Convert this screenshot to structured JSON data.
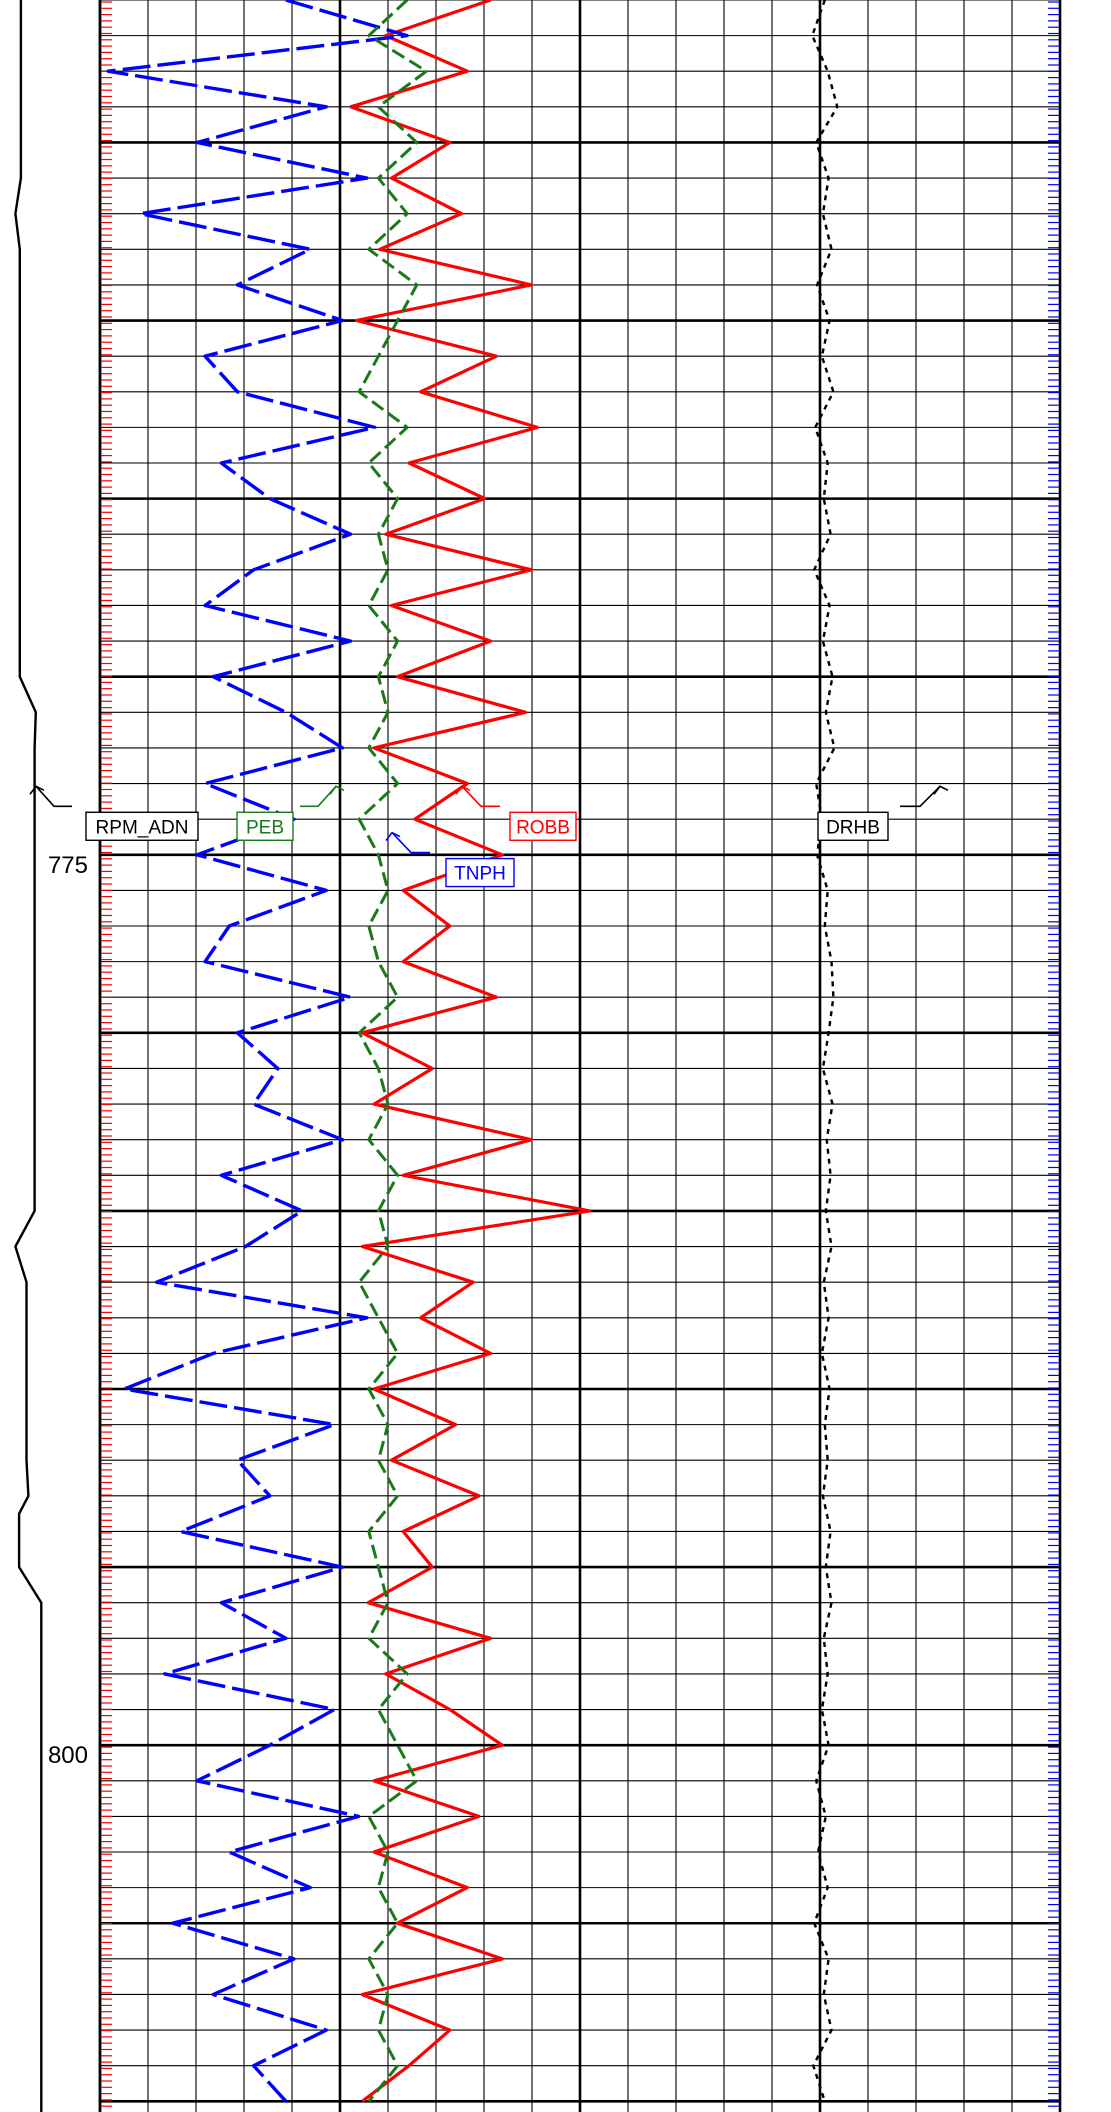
{
  "chart_data": {
    "type": "line",
    "title": "",
    "xlabel": "",
    "ylabel": "",
    "depth_range": [
      751.0,
      810.3
    ],
    "depth_ticks": [
      {
        "depth": 775,
        "label": "775"
      },
      {
        "depth": 800,
        "label": "800"
      }
    ],
    "grid": true,
    "curve_tags": [
      {
        "name": "RPM_ADN",
        "color": "#000000",
        "depth": 774.2
      },
      {
        "name": "PEB",
        "color": "#1a7a1a",
        "depth": 774.2
      },
      {
        "name": "ROBB",
        "color": "#ff0000",
        "depth": 774.2
      },
      {
        "name": "TNPH",
        "color": "#0000ff",
        "depth": 775.5
      },
      {
        "name": "DRHB",
        "color": "#000000",
        "depth": 774.2
      }
    ],
    "series": [
      {
        "name": "ROBB",
        "color": "#ff0000",
        "dashed": false,
        "depth": [
          751,
          752,
          753,
          754,
          755,
          756,
          757,
          758,
          759,
          760,
          761,
          762,
          763,
          764,
          765,
          766,
          767,
          768,
          769,
          770,
          771,
          772,
          773,
          774,
          775,
          776,
          777,
          778,
          779,
          780,
          781,
          782,
          783,
          784,
          785,
          786,
          787,
          788,
          789,
          790,
          791,
          792,
          793,
          794,
          795,
          796,
          797,
          798,
          799,
          800,
          801,
          802,
          803,
          804,
          805,
          806,
          807,
          808,
          809,
          810
        ],
        "values": [
          2.62,
          2.44,
          2.58,
          2.38,
          2.55,
          2.45,
          2.57,
          2.43,
          2.69,
          2.39,
          2.63,
          2.5,
          2.7,
          2.48,
          2.61,
          2.44,
          2.69,
          2.45,
          2.62,
          2.46,
          2.68,
          2.42,
          2.58,
          2.49,
          2.64,
          2.47,
          2.55,
          2.47,
          2.63,
          2.4,
          2.52,
          2.42,
          2.69,
          2.47,
          2.79,
          2.4,
          2.59,
          2.5,
          2.62,
          2.42,
          2.56,
          2.45,
          2.6,
          2.47,
          2.52,
          2.41,
          2.62,
          2.44,
          2.55,
          2.64,
          2.42,
          2.6,
          2.42,
          2.58,
          2.46,
          2.64,
          2.4,
          2.55,
          2.48,
          2.4
        ]
      },
      {
        "name": "TNPH",
        "color": "#0000ff",
        "dashed": true,
        "depth": [
          751,
          752,
          753,
          754,
          755,
          756,
          757,
          758,
          759,
          760,
          761,
          762,
          763,
          764,
          765,
          766,
          767,
          768,
          769,
          770,
          771,
          772,
          773,
          774,
          775,
          776,
          777,
          778,
          779,
          780,
          781,
          782,
          783,
          784,
          785,
          786,
          787,
          788,
          789,
          790,
          791,
          792,
          793,
          794,
          795,
          796,
          797,
          798,
          799,
          800,
          801,
          802,
          803,
          804,
          805,
          806,
          807,
          808,
          809,
          810
        ],
        "values": [
          0.22,
          0.07,
          0.44,
          0.17,
          0.33,
          0.12,
          0.4,
          0.19,
          0.28,
          0.15,
          0.32,
          0.28,
          0.11,
          0.3,
          0.24,
          0.14,
          0.26,
          0.32,
          0.14,
          0.31,
          0.22,
          0.15,
          0.32,
          0.21,
          0.33,
          0.17,
          0.29,
          0.32,
          0.14,
          0.28,
          0.23,
          0.26,
          0.15,
          0.3,
          0.2,
          0.27,
          0.38,
          0.12,
          0.31,
          0.42,
          0.16,
          0.28,
          0.24,
          0.35,
          0.15,
          0.3,
          0.22,
          0.37,
          0.16,
          0.24,
          0.33,
          0.13,
          0.29,
          0.19,
          0.36,
          0.21,
          0.31,
          0.17,
          0.26,
          0.22
        ]
      },
      {
        "name": "PEB",
        "color": "#1a7a1a",
        "dashed": true,
        "depth": [
          751,
          752,
          753,
          754,
          755,
          756,
          757,
          758,
          759,
          760,
          761,
          762,
          763,
          764,
          765,
          766,
          767,
          768,
          769,
          770,
          771,
          772,
          773,
          774,
          775,
          776,
          777,
          778,
          779,
          780,
          781,
          782,
          783,
          784,
          785,
          786,
          787,
          788,
          789,
          790,
          791,
          792,
          793,
          794,
          795,
          796,
          797,
          798,
          799,
          800,
          801,
          802,
          803,
          804,
          805,
          806,
          807,
          808,
          809,
          810
        ],
        "values": [
          3.2,
          2.8,
          3.4,
          2.9,
          3.3,
          2.9,
          3.2,
          2.8,
          3.3,
          3.1,
          2.9,
          2.7,
          3.2,
          2.8,
          3.1,
          2.9,
          3.0,
          2.8,
          3.1,
          2.9,
          3.0,
          2.8,
          3.1,
          2.7,
          2.9,
          3.0,
          2.8,
          2.9,
          3.1,
          2.7,
          2.9,
          3.0,
          2.8,
          3.1,
          2.9,
          3.0,
          2.7,
          2.9,
          3.1,
          2.8,
          3.0,
          2.9,
          3.1,
          2.8,
          2.9,
          3.0,
          2.8,
          3.2,
          2.9,
          3.1,
          3.3,
          2.8,
          3.0,
          2.9,
          3.1,
          2.8,
          3.0,
          2.9,
          3.1,
          2.8
        ]
      },
      {
        "name": "DRHB",
        "color": "#000000",
        "dashed": true,
        "depth": [
          751,
          752,
          753,
          754,
          755,
          756,
          757,
          758,
          759,
          760,
          761,
          762,
          763,
          764,
          765,
          766,
          767,
          768,
          769,
          770,
          771,
          772,
          773,
          774,
          775,
          776,
          777,
          778,
          779,
          780,
          781,
          782,
          783,
          784,
          785,
          786,
          787,
          788,
          789,
          790,
          791,
          792,
          793,
          794,
          795,
          796,
          797,
          798,
          799,
          800,
          801,
          802,
          803,
          804,
          805,
          806,
          807,
          808,
          809,
          810
        ],
        "values": [
          0.005,
          -0.008,
          0.008,
          0.018,
          -0.004,
          0.009,
          0.003,
          0.012,
          -0.003,
          0.01,
          0.002,
          0.014,
          -0.005,
          0.008,
          0.004,
          0.011,
          -0.006,
          0.01,
          0.003,
          0.013,
          0.006,
          0.015,
          -0.004,
          0.002,
          -0.003,
          0.008,
          0.005,
          0.012,
          0.014,
          0.009,
          0.003,
          0.013,
          0.007,
          0.011,
          0.006,
          0.012,
          0.004,
          0.009,
          0.002,
          0.01,
          0.005,
          0.008,
          0.003,
          0.011,
          0.006,
          0.012,
          0.004,
          0.008,
          0.002,
          0.009,
          -0.004,
          0.006,
          -0.002,
          0.008,
          -0.006,
          0.009,
          0.004,
          0.012,
          -0.007,
          0.005
        ]
      },
      {
        "name": "RPM_ADN",
        "color": "#000000",
        "dashed": false,
        "depth": [
          751,
          756,
          757,
          758,
          770,
          771,
          772,
          785,
          786,
          787,
          792,
          793,
          793.5,
          795,
          796,
          806,
          810.3
        ],
        "values": [
          0.35,
          0.35,
          0.2,
          0.32,
          0.32,
          0.75,
          0.72,
          0.72,
          0.2,
          0.5,
          0.5,
          0.55,
          0.3,
          0.3,
          0.9,
          0.9,
          0.9
        ]
      }
    ]
  }
}
